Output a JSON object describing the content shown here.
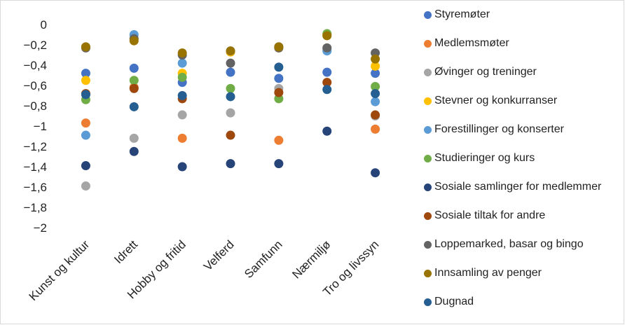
{
  "chart_data": {
    "type": "scatter",
    "categories": [
      "Kunst og kultur",
      "Idrett",
      "Hobby og fritid",
      "Velferd",
      "Samfunn",
      "Nærmiljø",
      "Tro og livssyn"
    ],
    "y_ticks": [
      "0",
      "−0,2",
      "−0,4",
      "−0,6",
      "−0,8",
      "−1",
      "−1,2",
      "−1,4",
      "−1,6",
      "−1,8",
      "−2"
    ],
    "ylim": [
      -2,
      0
    ],
    "grid": false,
    "legend_position": "right",
    "series": [
      {
        "name": "Styremøter",
        "color": "#4472c4",
        "values": [
          -0.48,
          -0.43,
          -0.57,
          -0.47,
          -0.53,
          -0.47,
          -0.48
        ]
      },
      {
        "name": "Medlemsmøter",
        "color": "#ed7d31",
        "values": [
          -0.97,
          -0.62,
          -1.12,
          -0.27,
          -1.14,
          -0.1,
          -1.03
        ]
      },
      {
        "name": "Øvinger og treninger",
        "color": "#a5a5a5",
        "values": [
          -1.59,
          -1.12,
          -0.89,
          -0.87,
          -0.63,
          -0.24,
          -0.9
        ]
      },
      {
        "name": "Stevner og konkurranser",
        "color": "#ffc000",
        "values": [
          -0.55,
          -0.14,
          -0.48,
          -0.27,
          -0.23,
          -0.1,
          -0.41
        ]
      },
      {
        "name": "Forestillinger og konserter",
        "color": "#5b9bd5",
        "values": [
          -1.09,
          -0.1,
          -0.38,
          -0.26,
          -0.22,
          -0.26,
          -0.76
        ]
      },
      {
        "name": "Studieringer og kurs",
        "color": "#70ad47",
        "values": [
          -0.74,
          -0.55,
          -0.52,
          -0.63,
          -0.73,
          -0.09,
          -0.61
        ]
      },
      {
        "name": "Sosiale samlinger for medlemmer",
        "color": "#264478",
        "values": [
          -1.39,
          -1.25,
          -1.4,
          -1.37,
          -1.37,
          -1.05,
          -1.46
        ]
      },
      {
        "name": "Sosiale tiltak for andre",
        "color": "#9e480e",
        "values": [
          -0.68,
          -0.63,
          -0.73,
          -1.09,
          -0.67,
          -0.57,
          -0.89
        ]
      },
      {
        "name": "Loppemarked, basar og bingo",
        "color": "#636363",
        "values": [
          -0.23,
          -0.14,
          -0.3,
          -0.38,
          -0.23,
          -0.23,
          -0.28
        ]
      },
      {
        "name": "Innsamling av penger",
        "color": "#997300",
        "values": [
          -0.22,
          -0.16,
          -0.28,
          -0.26,
          -0.22,
          -0.11,
          -0.34
        ]
      },
      {
        "name": "Dugnad",
        "color": "#255e91",
        "values": [
          -0.69,
          -0.81,
          -0.7,
          -0.71,
          -0.42,
          -0.64,
          -0.68
        ]
      }
    ]
  }
}
